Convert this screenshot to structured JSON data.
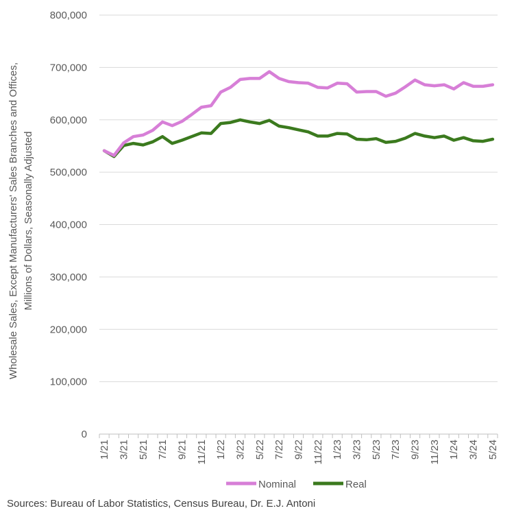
{
  "chart_data": {
    "type": "line",
    "ylabel_lines": [
      "Wholesale Sales, Except Manufacturers' Sales Branches and Offices,",
      "Millions of Dollars, Seasonally Adjusted"
    ],
    "ylim": [
      0,
      800000
    ],
    "yticks": [
      "0",
      "100,000",
      "200,000",
      "300,000",
      "400,000",
      "500,000",
      "600,000",
      "700,000",
      "800,000"
    ],
    "x": [
      "1/21",
      "2/21",
      "3/21",
      "4/21",
      "5/21",
      "6/21",
      "7/21",
      "8/21",
      "9/21",
      "10/21",
      "11/21",
      "12/21",
      "1/22",
      "2/22",
      "3/22",
      "4/22",
      "5/22",
      "6/22",
      "7/22",
      "8/22",
      "9/22",
      "10/22",
      "11/22",
      "12/22",
      "1/23",
      "2/23",
      "3/23",
      "4/23",
      "5/23",
      "6/23",
      "7/23",
      "8/23",
      "9/23",
      "10/23",
      "11/23",
      "12/23",
      "1/24",
      "2/24",
      "3/24",
      "4/24",
      "5/24"
    ],
    "xtick_labels": [
      "1/21",
      "3/21",
      "5/21",
      "7/21",
      "9/21",
      "11/21",
      "1/22",
      "3/22",
      "5/22",
      "7/22",
      "9/22",
      "11/22",
      "1/23",
      "3/23",
      "5/23",
      "7/23",
      "9/23",
      "11/23",
      "1/24",
      "3/24",
      "5/24"
    ],
    "grid": true,
    "legend_position": "bottom",
    "series": [
      {
        "name": "Nominal",
        "color": "#d77fd7",
        "values": [
          541000,
          532000,
          556000,
          568000,
          571000,
          580000,
          596000,
          589000,
          597000,
          610000,
          624000,
          627000,
          653000,
          662000,
          677000,
          679000,
          679000,
          692000,
          679000,
          673000,
          671000,
          670000,
          662000,
          661000,
          670000,
          669000,
          653000,
          654000,
          654000,
          645000,
          651000,
          663000,
          676000,
          667000,
          665000,
          667000,
          659000,
          671000,
          664000,
          664000,
          667000
        ]
      },
      {
        "name": "Real",
        "color": "#3b7a1e",
        "values": [
          541000,
          530000,
          551000,
          555000,
          552000,
          558000,
          568000,
          555000,
          561000,
          568000,
          575000,
          574000,
          593000,
          595000,
          600000,
          596000,
          593000,
          599000,
          588000,
          585000,
          581000,
          577000,
          569000,
          569000,
          574000,
          573000,
          563000,
          562000,
          564000,
          557000,
          559000,
          565000,
          574000,
          569000,
          566000,
          569000,
          561000,
          566000,
          560000,
          559000,
          563000
        ]
      }
    ]
  },
  "source": "Sources: Bureau of Labor Statistics, Census Bureau, Dr. E.J. Antoni"
}
